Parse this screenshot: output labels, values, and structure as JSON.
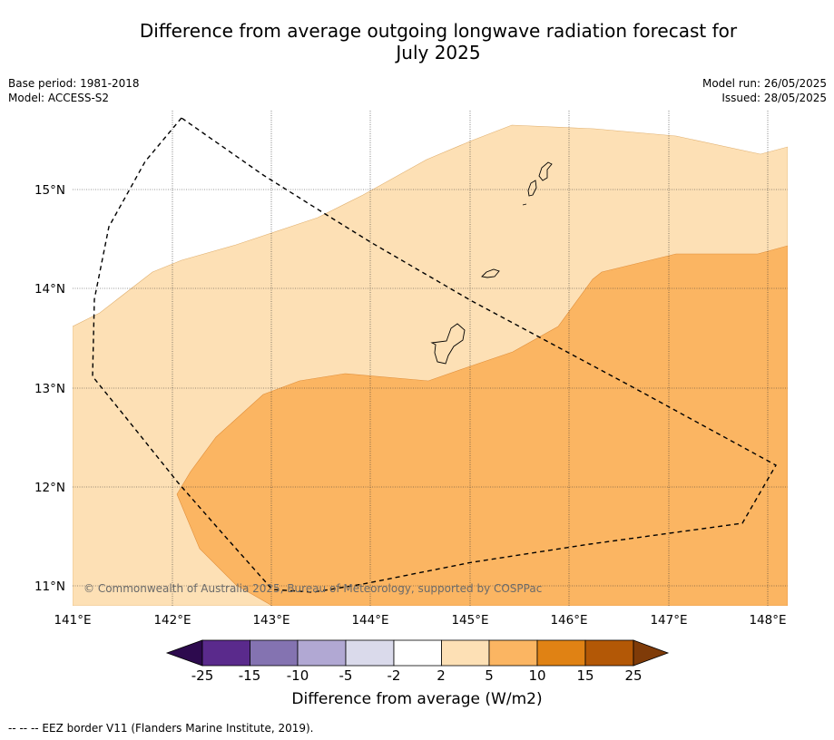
{
  "title": {
    "line1": "Difference from average outgoing longwave radiation forecast for",
    "line2": "July 2025"
  },
  "meta": {
    "base_period": "Base period: 1981-2018",
    "model": "Model: ACCESS-S2",
    "model_run": "Model run: 26/05/2025",
    "issued": "Issued: 28/05/2025"
  },
  "map": {
    "lon_labels": [
      "141°E",
      "142°E",
      "143°E",
      "144°E",
      "145°E",
      "146°E",
      "147°E",
      "148°E"
    ],
    "lat_labels": [
      "15°N",
      "14°N",
      "13°N",
      "12°N",
      "11°N"
    ],
    "copyright": "© Commonwealth of Australia 2025, Bureau of Meteorology, supported by COSPPac"
  },
  "colorbar": {
    "ticks": [
      "-25",
      "-15",
      "-10",
      "-5",
      "-2",
      "2",
      "5",
      "10",
      "15",
      "25"
    ],
    "colors": {
      "lt_neg25": "#2d0a4e",
      "neg25_neg15": "#5a2a8c",
      "neg15_neg10": "#8473b1",
      "neg10_neg5": "#b1a8d3",
      "neg5_neg2": "#dadaeb",
      "neg2_2": "#ffffff",
      "2_5": "#fde0b5",
      "5_10": "#fbb562",
      "10_15": "#e08214",
      "15_25": "#b35806",
      "gt_25": "#7f3b08"
    },
    "label": "Difference from average (W/m2)"
  },
  "footnote": "--  --  -- EEZ border V11 (Flanders Marine Institute, 2019)."
}
